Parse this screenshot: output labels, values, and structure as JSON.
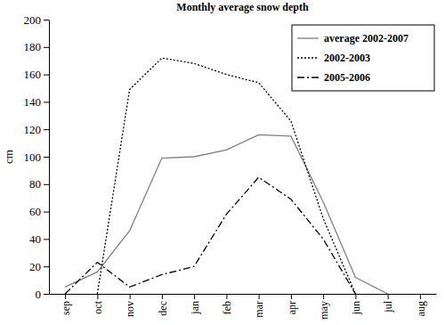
{
  "chart_data": {
    "type": "line",
    "title": "Monthly average snow depth",
    "y_label": "cm",
    "categories": [
      "sep",
      "oct",
      "nov",
      "dec",
      "jan",
      "feb",
      "mar",
      "apr",
      "may",
      "jun",
      "jul",
      "aug"
    ],
    "series": [
      {
        "name": "average 2002-2007",
        "color": "#808080",
        "line_style": "solid",
        "values": [
          5,
          16,
          46,
          99,
          100,
          105,
          116,
          115,
          67,
          12,
          0,
          null
        ]
      },
      {
        "name": "2002-2003",
        "color": "#000000",
        "line_style": "dotted",
        "values": [
          null,
          0,
          149,
          172,
          168,
          160,
          154,
          126,
          55,
          0,
          null,
          null
        ]
      },
      {
        "name": "2005-2006",
        "color": "#000000",
        "line_style": "dashdot",
        "values": [
          0,
          23,
          5,
          14,
          20,
          58,
          85,
          69,
          40,
          0,
          null,
          null
        ]
      }
    ],
    "ylim": [
      0,
      200
    ],
    "yticks": [
      0,
      20,
      40,
      60,
      80,
      100,
      120,
      140,
      160,
      180,
      200
    ],
    "grid": false,
    "legend": "top-right"
  }
}
